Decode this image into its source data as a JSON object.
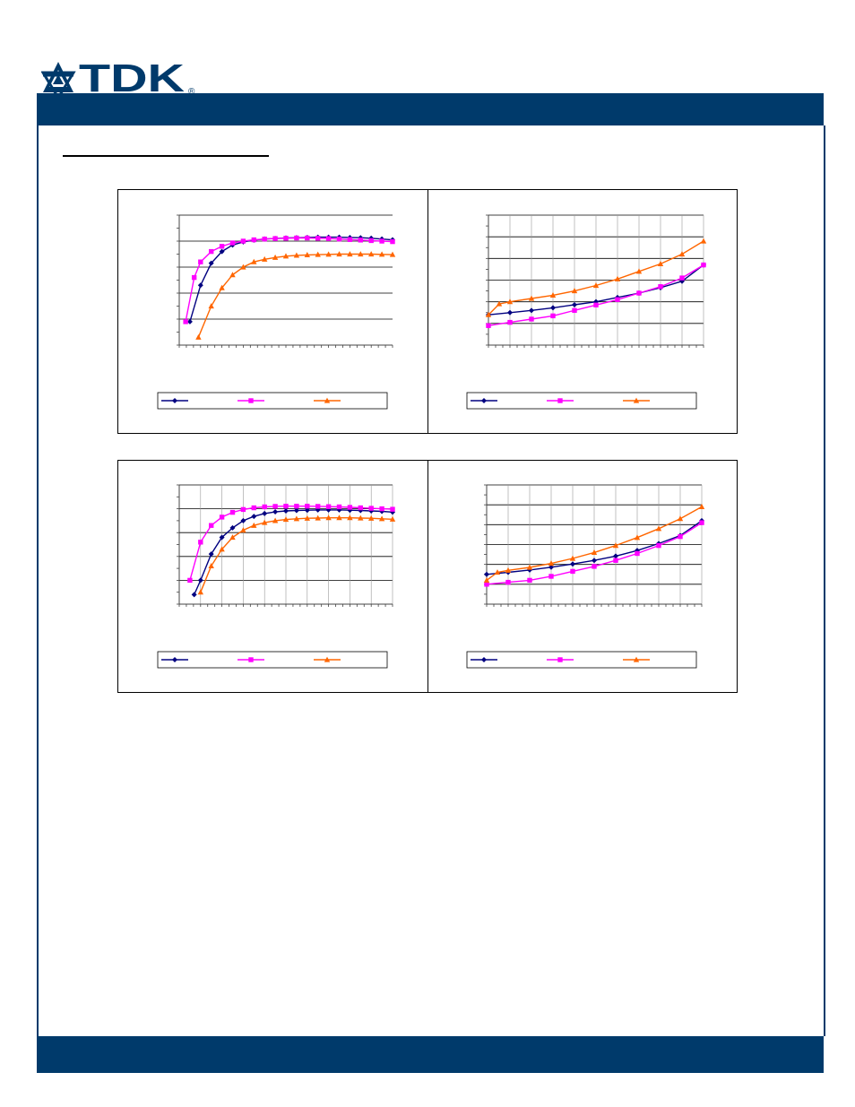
{
  "brand": {
    "logo_text": "TDK",
    "registered_mark": "®",
    "primary_color": "#003a6b"
  },
  "series_styles": [
    {
      "color": "#000080",
      "marker": "diamond"
    },
    {
      "color": "#ff00ff",
      "marker": "square"
    },
    {
      "color": "#ff6600",
      "marker": "triangle"
    }
  ],
  "charts": [
    {
      "type": "line",
      "xlim": [
        0,
        10
      ],
      "ylim": [
        0,
        5
      ],
      "grid": true,
      "legend_position": "bottom",
      "series": [
        {
          "x": [
            0.5,
            1,
            1.5,
            2,
            2.5,
            3,
            3.5,
            4,
            4.5,
            5,
            5.5,
            6,
            6.5,
            7,
            7.5,
            8,
            8.5,
            9,
            9.5,
            10
          ],
          "values": [
            0.9,
            2.3,
            3.15,
            3.6,
            3.85,
            3.97,
            4.04,
            4.08,
            4.1,
            4.12,
            4.13,
            4.14,
            4.15,
            4.15,
            4.15,
            4.14,
            4.13,
            4.11,
            4.08,
            4.05
          ]
        },
        {
          "x": [
            0.3,
            0.7,
            1,
            1.5,
            2,
            2.5,
            3,
            3.5,
            4,
            4.5,
            5,
            5.5,
            6,
            6.5,
            7,
            7.5,
            8,
            8.5,
            9,
            9.5,
            10
          ],
          "values": [
            0.9,
            2.6,
            3.2,
            3.6,
            3.8,
            3.93,
            4.0,
            4.05,
            4.08,
            4.1,
            4.11,
            4.12,
            4.12,
            4.11,
            4.1,
            4.08,
            4.06,
            4.04,
            4.02,
            4.0,
            3.98
          ]
        },
        {
          "x": [
            0.9,
            1.5,
            2,
            2.5,
            3,
            3.5,
            4,
            4.5,
            5,
            5.5,
            6,
            6.5,
            7,
            7.5,
            8,
            8.5,
            9,
            9.5,
            10
          ],
          "values": [
            0.3,
            1.5,
            2.2,
            2.7,
            3.0,
            3.2,
            3.3,
            3.37,
            3.42,
            3.45,
            3.47,
            3.48,
            3.49,
            3.5,
            3.5,
            3.5,
            3.5,
            3.49,
            3.48
          ]
        }
      ]
    },
    {
      "type": "line",
      "xlim": [
        0,
        10
      ],
      "ylim": [
        0,
        6
      ],
      "grid": true,
      "legend_position": "bottom",
      "series": [
        {
          "x": [
            0,
            1,
            2,
            3,
            4,
            5,
            6,
            7,
            8,
            9,
            10
          ],
          "values": [
            1.4,
            1.5,
            1.6,
            1.72,
            1.86,
            2.0,
            2.2,
            2.4,
            2.65,
            2.95,
            3.7
          ]
        },
        {
          "x": [
            0,
            1,
            2,
            3,
            4,
            5,
            6,
            7,
            8,
            9,
            10
          ],
          "values": [
            0.9,
            1.05,
            1.2,
            1.35,
            1.6,
            1.85,
            2.1,
            2.4,
            2.7,
            3.1,
            3.7
          ]
        },
        {
          "x": [
            0,
            0.5,
            1,
            2,
            3,
            4,
            5,
            6,
            7,
            8,
            9,
            10
          ],
          "values": [
            1.4,
            1.9,
            2.0,
            2.15,
            2.3,
            2.5,
            2.75,
            3.05,
            3.4,
            3.75,
            4.2,
            4.8
          ]
        }
      ]
    },
    {
      "type": "line",
      "xlim": [
        0,
        10
      ],
      "ylim": [
        0,
        5
      ],
      "grid": true,
      "legend_position": "bottom",
      "series": [
        {
          "x": [
            0.7,
            1,
            1.5,
            2,
            2.5,
            3,
            3.5,
            4,
            4.5,
            5,
            5.5,
            6,
            6.5,
            7,
            7.5,
            8,
            8.5,
            9,
            9.5,
            10
          ],
          "values": [
            0.4,
            1.0,
            2.1,
            2.8,
            3.2,
            3.5,
            3.68,
            3.8,
            3.87,
            3.91,
            3.93,
            3.94,
            3.95,
            3.95,
            3.95,
            3.94,
            3.93,
            3.91,
            3.89,
            3.86
          ]
        },
        {
          "x": [
            0.5,
            1,
            1.5,
            2,
            2.5,
            3,
            3.5,
            4,
            4.5,
            5,
            5.5,
            6,
            6.5,
            7,
            7.5,
            8,
            8.5,
            9,
            9.5,
            10
          ],
          "values": [
            1.0,
            2.6,
            3.3,
            3.65,
            3.85,
            3.97,
            4.04,
            4.08,
            4.1,
            4.11,
            4.11,
            4.11,
            4.1,
            4.09,
            4.08,
            4.06,
            4.04,
            4.02,
            4.0,
            3.98
          ]
        },
        {
          "x": [
            1,
            1.5,
            2,
            2.5,
            3,
            3.5,
            4,
            4.5,
            5,
            5.5,
            6,
            6.5,
            7,
            7.5,
            8,
            8.5,
            9,
            9.5,
            10
          ],
          "values": [
            0.5,
            1.6,
            2.3,
            2.8,
            3.1,
            3.3,
            3.42,
            3.5,
            3.55,
            3.58,
            3.6,
            3.61,
            3.62,
            3.62,
            3.62,
            3.61,
            3.6,
            3.58,
            3.56
          ]
        }
      ]
    },
    {
      "type": "line",
      "xlim": [
        0,
        10
      ],
      "ylim": [
        0,
        6
      ],
      "grid": true,
      "legend_position": "bottom",
      "series": [
        {
          "x": [
            0,
            1,
            2,
            3,
            4,
            5,
            6,
            7,
            8,
            9,
            10
          ],
          "values": [
            1.5,
            1.6,
            1.72,
            1.86,
            2.02,
            2.2,
            2.42,
            2.7,
            3.05,
            3.45,
            4.2
          ]
        },
        {
          "x": [
            0,
            1,
            2,
            3,
            4,
            5,
            6,
            7,
            8,
            9,
            10
          ],
          "values": [
            1.0,
            1.1,
            1.2,
            1.4,
            1.65,
            1.9,
            2.2,
            2.55,
            2.95,
            3.4,
            4.1
          ]
        },
        {
          "x": [
            0,
            0.5,
            1,
            2,
            3,
            4,
            5,
            6,
            7,
            8,
            9,
            10
          ],
          "values": [
            1.2,
            1.6,
            1.7,
            1.85,
            2.05,
            2.3,
            2.6,
            2.95,
            3.35,
            3.8,
            4.3,
            4.9
          ]
        }
      ]
    }
  ]
}
